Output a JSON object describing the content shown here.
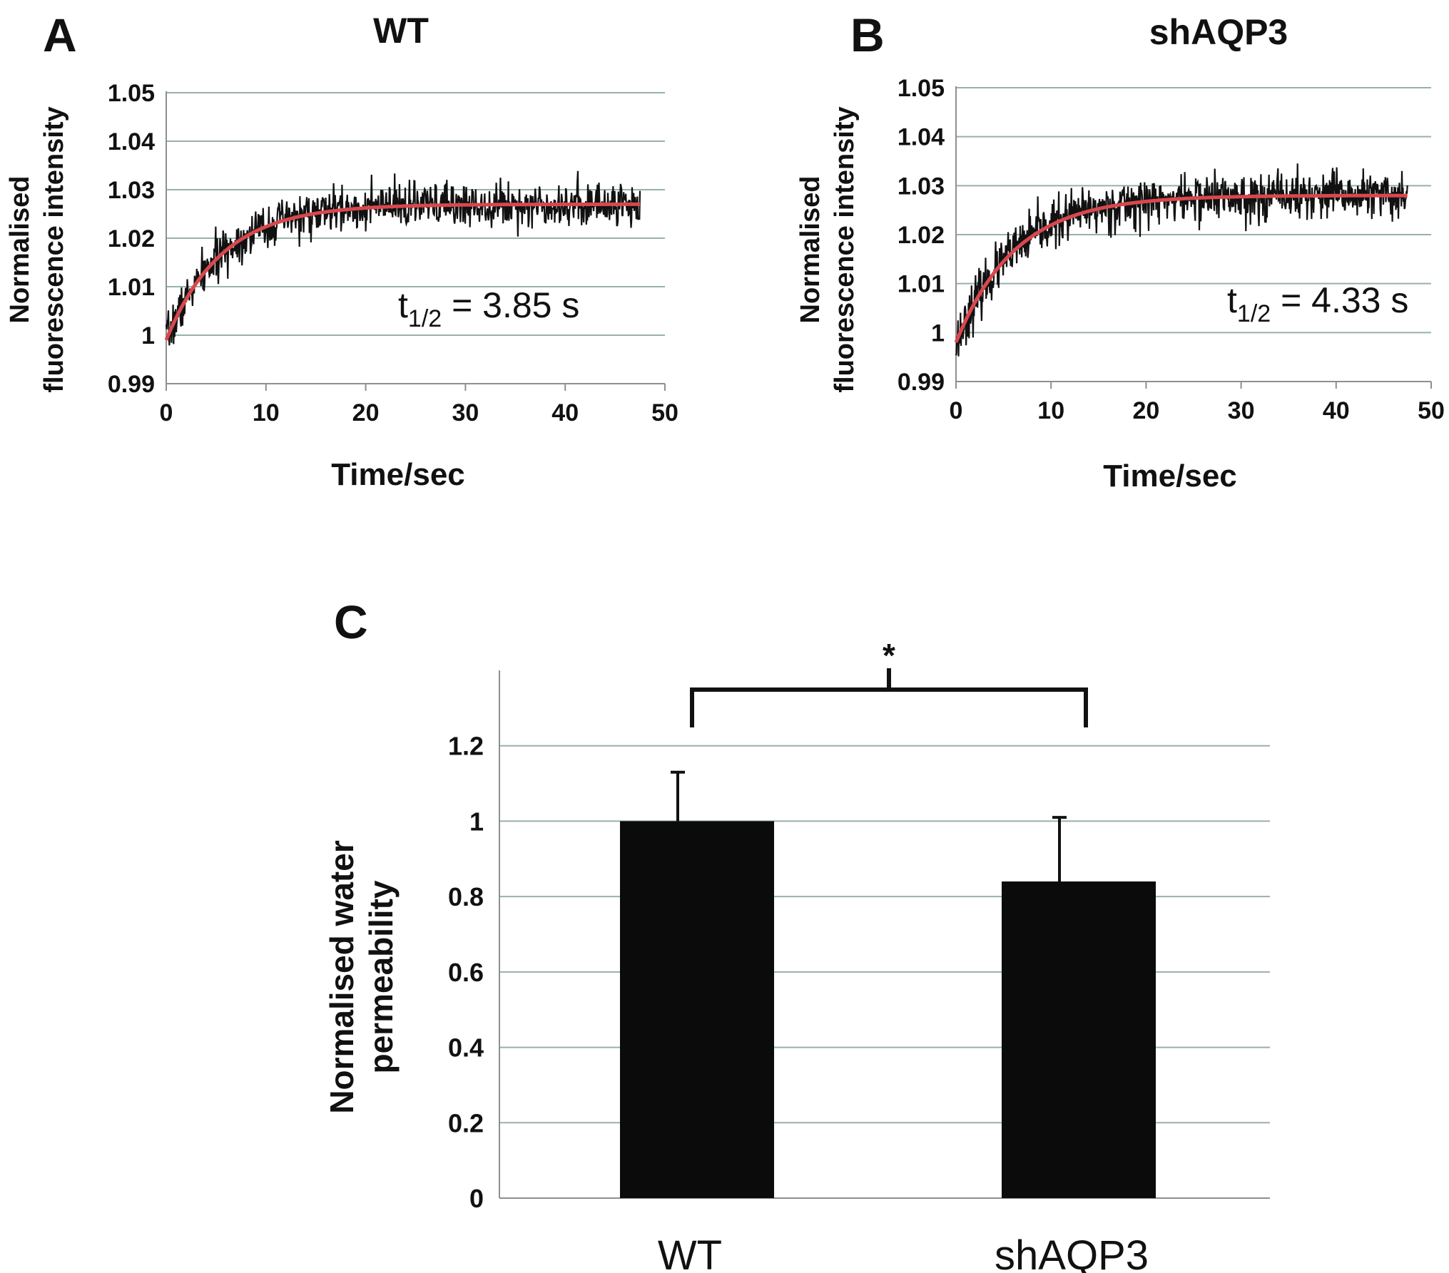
{
  "chart_data": [
    {
      "panel_label": "A",
      "type": "line",
      "title": "WT",
      "xlabel": "Time/sec",
      "ylabel_lines": [
        "Normalised",
        "fluorescence intensity"
      ],
      "xlim": [
        0,
        50
      ],
      "ylim": [
        0.99,
        1.05
      ],
      "x_ticks": [
        0,
        10,
        20,
        30,
        40,
        50
      ],
      "x_tick_labels": [
        "0",
        "10",
        "20",
        "30",
        "40",
        "50"
      ],
      "y_ticks": [
        0.99,
        1.0,
        1.01,
        1.02,
        1.03,
        1.04,
        1.05
      ],
      "y_tick_labels": [
        "0.99",
        "1",
        "1.01",
        "1.02",
        "1.03",
        "1.04",
        "1.05"
      ],
      "grid": true,
      "annotation": {
        "t": "t",
        "sub": "1/2",
        "rest": " = 3.85 s"
      },
      "series": [
        {
          "kind": "raw",
          "color": "#111111",
          "model": {
            "y0": 0.999,
            "plateau": 1.027,
            "k": 0.18,
            "x_max": 47.5
          },
          "noise_sd": 0.0022
        },
        {
          "kind": "fit",
          "color": "#d9474d",
          "model": {
            "y0": 0.999,
            "plateau": 1.027,
            "k": 0.18,
            "x_max": 47.5
          }
        }
      ]
    },
    {
      "panel_label": "B",
      "type": "line",
      "title": "shAQP3",
      "xlabel": "Time/sec",
      "ylabel_lines": [
        "Normalised",
        "fluorescence intensity"
      ],
      "xlim": [
        0,
        50
      ],
      "ylim": [
        0.99,
        1.05
      ],
      "x_ticks": [
        0,
        10,
        20,
        30,
        40,
        50
      ],
      "x_tick_labels": [
        "0",
        "10",
        "20",
        "30",
        "40",
        "50"
      ],
      "y_ticks": [
        0.99,
        1.0,
        1.01,
        1.02,
        1.03,
        1.04,
        1.05
      ],
      "y_tick_labels": [
        "0.99",
        "1",
        "1.01",
        "1.02",
        "1.03",
        "1.04",
        "1.05"
      ],
      "grid": true,
      "annotation": {
        "t": "t",
        "sub": "1/2",
        "rest": " = 4.33 s"
      },
      "series": [
        {
          "kind": "raw",
          "color": "#111111",
          "model": {
            "y0": 0.998,
            "plateau": 1.028,
            "k": 0.16,
            "x_max": 47.5
          },
          "noise_sd": 0.0024
        },
        {
          "kind": "fit",
          "color": "#d9474d",
          "model": {
            "y0": 0.998,
            "plateau": 1.028,
            "k": 0.16,
            "x_max": 47.5
          }
        }
      ]
    },
    {
      "panel_label": "C",
      "type": "bar",
      "title": "",
      "xlabel": "",
      "ylabel_lines": [
        "Normalised water",
        "permeability"
      ],
      "categories": [
        "WT",
        "shAQP3"
      ],
      "values": [
        1.0,
        0.84
      ],
      "errors": [
        0.13,
        0.17
      ],
      "ylim": [
        0,
        1.4
      ],
      "y_ticks": [
        0,
        0.2,
        0.4,
        0.6,
        0.8,
        1.0,
        1.2
      ],
      "y_tick_labels": [
        "0",
        "0.2",
        "0.4",
        "0.6",
        "0.8",
        "1",
        "1.2"
      ],
      "grid": true,
      "bar_color": "#0b0b0b",
      "significance": {
        "label": "*",
        "between": [
          0,
          1
        ]
      }
    }
  ]
}
